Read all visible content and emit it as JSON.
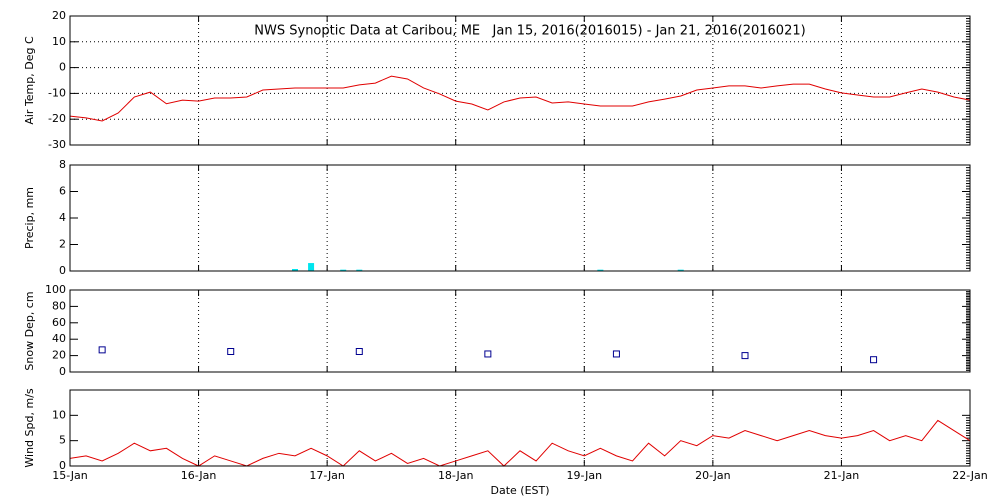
{
  "x_axis": {
    "label": "Date (EST)",
    "ticks": [
      "15-Jan",
      "16-Jan",
      "17-Jan",
      "18-Jan",
      "19-Jan",
      "20-Jan",
      "21-Jan",
      "22-Jan"
    ]
  },
  "chart_data": [
    {
      "type": "line",
      "title": "NWS Synoptic Data at Caribou, ME   Jan 15, 2016(2016015) - Jan 21, 2016(2016021)",
      "ylabel": "Air Temp, Deg C",
      "ylim": [
        -30,
        20
      ],
      "yticks": [
        -30,
        -20,
        -10,
        0,
        10,
        20
      ],
      "grid": [
        "x",
        "y"
      ],
      "color": "#e00000",
      "values": [
        -18.8,
        -19.5,
        -20.7,
        -17.6,
        -11.4,
        -9.5,
        -14,
        -12.6,
        -13,
        -11.8,
        -11.8,
        -11.4,
        -8.7,
        -8.3,
        -7.9,
        -7.9,
        -7.9,
        -7.9,
        -6.7,
        -6,
        -3.3,
        -4.4,
        -7.9,
        -10.2,
        -13,
        -14.1,
        -16.4,
        -13.3,
        -11.8,
        -11.4,
        -13.7,
        -13.3,
        -14.1,
        -14.9,
        -14.9,
        -14.9,
        -13.3,
        -12.2,
        -11,
        -8.7,
        -7.9,
        -7.1,
        -7.1,
        -7.9,
        -7.1,
        -6.4,
        -6.4,
        -8.3,
        -9.8,
        -10.6,
        -11.4,
        -11.4,
        -9.8,
        -8.3,
        -9.5,
        -11.4,
        -12.6
      ]
    },
    {
      "type": "bar",
      "ylabel": "Precip, mm",
      "ylim": [
        0,
        8
      ],
      "yticks": [
        0,
        2,
        4,
        6,
        8
      ],
      "grid": [
        "x"
      ],
      "color": "#00e5ee",
      "values": [
        0,
        0,
        0,
        0,
        0,
        0,
        0,
        0,
        0,
        0,
        0,
        0,
        0,
        0,
        0.15,
        0.6,
        0,
        0.1,
        0.1,
        0,
        0,
        0,
        0,
        0,
        0,
        0,
        0,
        0,
        0,
        0,
        0,
        0,
        0,
        0.1,
        0,
        0,
        0,
        0,
        0.1,
        0,
        0,
        0,
        0,
        0,
        0,
        0,
        0,
        0,
        0,
        0,
        0,
        0,
        0,
        0,
        0,
        0,
        0
      ]
    },
    {
      "type": "scatter",
      "ylabel": "Snow Dep, cm",
      "ylim": [
        0,
        100
      ],
      "yticks": [
        0,
        20,
        40,
        60,
        80,
        100
      ],
      "grid": [
        "x"
      ],
      "color": "#000090",
      "values": [
        null,
        27,
        null,
        null,
        null,
        25,
        null,
        null,
        null,
        25,
        null,
        null,
        null,
        22,
        null,
        null,
        null,
        22,
        null,
        null,
        null,
        20,
        null,
        null,
        null,
        15,
        null,
        null,
        null
      ]
    },
    {
      "type": "line",
      "ylabel": "Wind Spd, m/s",
      "ylim": [
        0,
        15
      ],
      "yticks": [
        0,
        5,
        10
      ],
      "grid": [
        "x"
      ],
      "color": "#e00000",
      "values": [
        1.5,
        2,
        1,
        2.5,
        4.5,
        3,
        3.5,
        1.5,
        0,
        2,
        1,
        0,
        1.5,
        2.5,
        2,
        3.5,
        2,
        0,
        3,
        1,
        2.5,
        0.5,
        1.5,
        0,
        1,
        2,
        3,
        0,
        3,
        1,
        4.5,
        3,
        2,
        3.5,
        2,
        1,
        4.5,
        2,
        5,
        4,
        6,
        5.5,
        7,
        6,
        5,
        6,
        7,
        6,
        5.5,
        6,
        7,
        5,
        6,
        5,
        9,
        7,
        5
      ]
    }
  ]
}
